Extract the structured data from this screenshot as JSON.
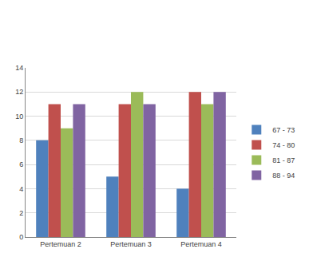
{
  "chart_data": {
    "type": "bar",
    "categories": [
      "Pertemuan 2",
      "Pertemuan 3",
      "Pertemuan 4"
    ],
    "series": [
      {
        "name": "67 - 73",
        "color": "#4f81bd",
        "values": [
          8,
          5,
          4
        ]
      },
      {
        "name": "74 - 80",
        "color": "#c0504d",
        "values": [
          11,
          11,
          12
        ]
      },
      {
        "name": "81 - 87",
        "color": "#9bbb59",
        "values": [
          9,
          12,
          11
        ]
      },
      {
        "name": "88 - 94",
        "color": "#8064a2",
        "values": [
          11,
          11,
          12
        ]
      }
    ],
    "ylim": [
      0,
      14
    ],
    "yticks": [
      0,
      2,
      4,
      6,
      8,
      10,
      12,
      14
    ],
    "grid": true,
    "legend": "right"
  }
}
